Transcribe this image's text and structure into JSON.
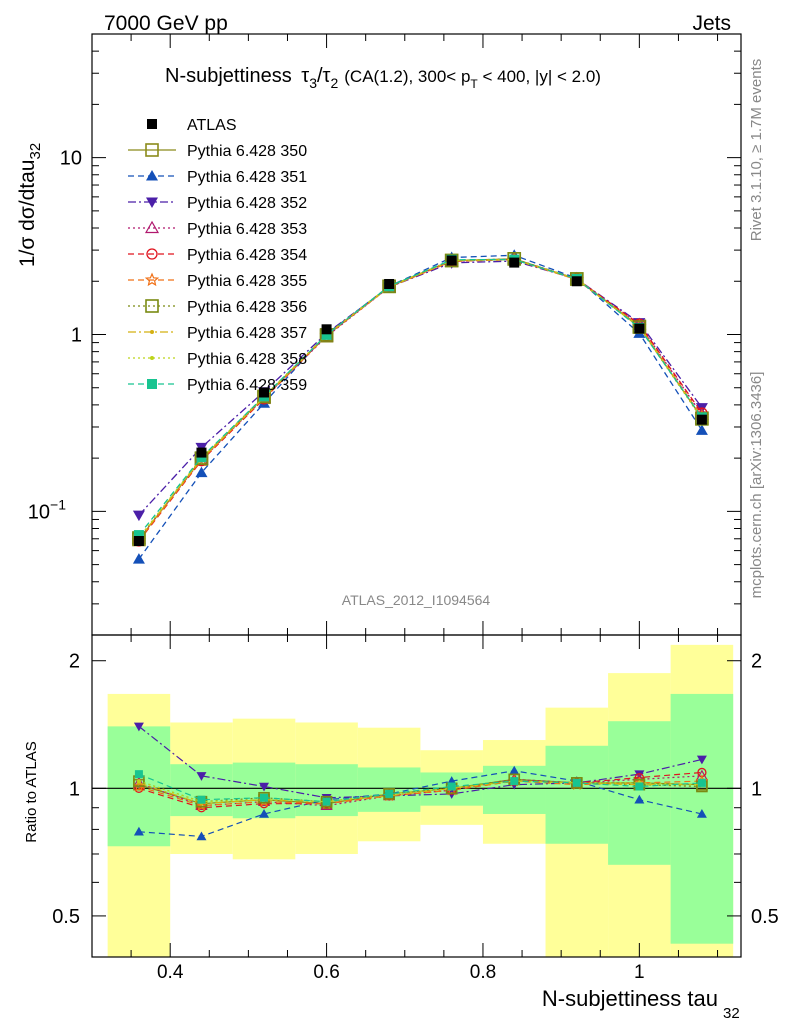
{
  "header": {
    "left": "7000 GeV pp",
    "right": "Jets"
  },
  "side_labels": {
    "rivet": "Rivet 3.1.10, ≥ 1.7M events",
    "mcplots": "mcplots.cern.ch [arXiv:1306.3436]"
  },
  "title": {
    "main": "N-subjettiness",
    "t3": "τ",
    "sub3": "3",
    "slash": "/",
    "t2": "τ",
    "sub2": "2",
    "cuts_a": "(CA(1.2), 300< p",
    "cuts_sub": "T",
    "cuts_b": " < 400, |y| < 2.0)"
  },
  "analysis_id": "ATLAS_2012_I1094564",
  "ylabel_main": {
    "text": "1/σ dσ/dtau",
    "sub": "32"
  },
  "ylabel_ratio": "Ratio to ATLAS",
  "xlabel": {
    "text": "N-subjettiness tau",
    "sub": "32"
  },
  "chart_data": {
    "type": "line",
    "x": [
      0.36,
      0.44,
      0.52,
      0.6,
      0.68,
      0.76,
      0.84,
      0.92,
      1.0,
      1.08
    ],
    "x_edges": [
      0.32,
      0.4,
      0.48,
      0.56,
      0.64,
      0.72,
      0.8,
      0.88,
      0.96,
      1.04,
      1.12
    ],
    "xlim": [
      0.3,
      1.13
    ],
    "main_ylim": [
      0.02,
      50
    ],
    "main_yscale": "log",
    "ratio_ylim": [
      0.4,
      2.3
    ],
    "ratio_yscale": "log",
    "x_ticks": [
      0.4,
      0.6,
      0.8,
      1
    ],
    "x_tick_labels": [
      "0.4",
      "0.6",
      "0.8",
      "1"
    ],
    "main_y_ticks": [
      0.1,
      1,
      10
    ],
    "main_y_tick_labels": [
      "10",
      "1",
      "10"
    ],
    "main_y_tick_exps": [
      "−1",
      "",
      ""
    ],
    "ratio_y_ticks": [
      0.5,
      1,
      2
    ],
    "ratio_y_tick_labels": [
      "0.5",
      "1",
      "2"
    ],
    "legend_position": "top-left",
    "data": {
      "name": "ATLAS",
      "values": [
        0.068,
        0.215,
        0.47,
        1.07,
        1.93,
        2.62,
        2.55,
        2.0,
        1.08,
        0.33
      ]
    },
    "band_green": [
      [
        0.73,
        1.4
      ],
      [
        0.86,
        1.14
      ],
      [
        0.85,
        1.15
      ],
      [
        0.86,
        1.14
      ],
      [
        0.88,
        1.12
      ],
      [
        0.91,
        1.09
      ],
      [
        0.87,
        1.13
      ],
      [
        0.74,
        1.26
      ],
      [
        0.66,
        1.44
      ],
      [
        0.43,
        1.67
      ]
    ],
    "band_yellow": [
      [
        0.2,
        1.67
      ],
      [
        0.7,
        1.43
      ],
      [
        0.68,
        1.46
      ],
      [
        0.7,
        1.43
      ],
      [
        0.75,
        1.39
      ],
      [
        0.82,
        1.23
      ],
      [
        0.74,
        1.3
      ],
      [
        0.4,
        1.55
      ],
      [
        0.3,
        1.87
      ],
      [
        0.2,
        2.18
      ]
    ],
    "series": [
      {
        "name": "Pythia 6.428 350",
        "color": "#8b8b1a",
        "dash": "solid",
        "marker": "square-open",
        "ratio": [
          1.02,
          0.92,
          0.94,
          0.92,
          0.97,
          1.0,
          1.05,
          1.03,
          1.03,
          1.02
        ]
      },
      {
        "name": "Pythia 6.428 351",
        "color": "#1450b8",
        "dash": "dashed",
        "marker": "triangle-up",
        "ratio": [
          0.79,
          0.77,
          0.87,
          0.94,
          0.97,
          1.04,
          1.1,
          1.04,
          0.94,
          0.87
        ]
      },
      {
        "name": "Pythia 6.428 352",
        "color": "#4b1fa8",
        "dash": "dashdot",
        "marker": "triangle-down",
        "ratio": [
          1.4,
          1.07,
          1.01,
          0.95,
          0.96,
          0.97,
          1.02,
          1.03,
          1.08,
          1.17
        ]
      },
      {
        "name": "Pythia 6.428 353",
        "color": "#b0186e",
        "dash": "dotted",
        "marker": "triangle-open",
        "ratio": [
          1.03,
          0.91,
          0.93,
          0.91,
          0.96,
          0.99,
          1.05,
          1.03,
          1.05,
          1.07
        ]
      },
      {
        "name": "Pythia 6.428 354",
        "color": "#e0141e",
        "dash": "dashed",
        "marker": "circle-open",
        "ratio": [
          1.0,
          0.9,
          0.92,
          0.92,
          0.96,
          0.99,
          1.04,
          1.03,
          1.06,
          1.09
        ]
      },
      {
        "name": "Pythia 6.428 355",
        "color": "#f07016",
        "dash": "dashed",
        "marker": "star-open",
        "ratio": [
          1.01,
          0.91,
          0.93,
          0.92,
          0.96,
          0.99,
          1.04,
          1.02,
          1.03,
          1.04
        ]
      },
      {
        "name": "Pythia 6.428 356",
        "color": "#7a8a12",
        "dash": "dotted",
        "marker": "square-open",
        "ratio": [
          1.04,
          0.93,
          0.95,
          0.93,
          0.97,
          1.0,
          1.05,
          1.03,
          1.02,
          1.01
        ]
      },
      {
        "name": "Pythia 6.428 357",
        "color": "#d4b012",
        "dash": "dashdot",
        "marker": "small-dot",
        "ratio": [
          1.03,
          0.92,
          0.94,
          0.93,
          0.96,
          1.0,
          1.04,
          1.03,
          1.02,
          1.02
        ]
      },
      {
        "name": "Pythia 6.428 358",
        "color": "#bcd41a",
        "dash": "dotted",
        "marker": "small-dot",
        "ratio": [
          1.04,
          0.93,
          0.94,
          0.93,
          0.97,
          1.0,
          1.04,
          1.03,
          1.03,
          1.02
        ]
      },
      {
        "name": "Pythia 6.428 359",
        "color": "#18c490",
        "dash": "dashed",
        "marker": "square-filled",
        "ratio": [
          1.08,
          0.94,
          0.95,
          0.93,
          0.97,
          1.01,
          1.04,
          1.03,
          1.01,
          1.03
        ]
      }
    ]
  }
}
